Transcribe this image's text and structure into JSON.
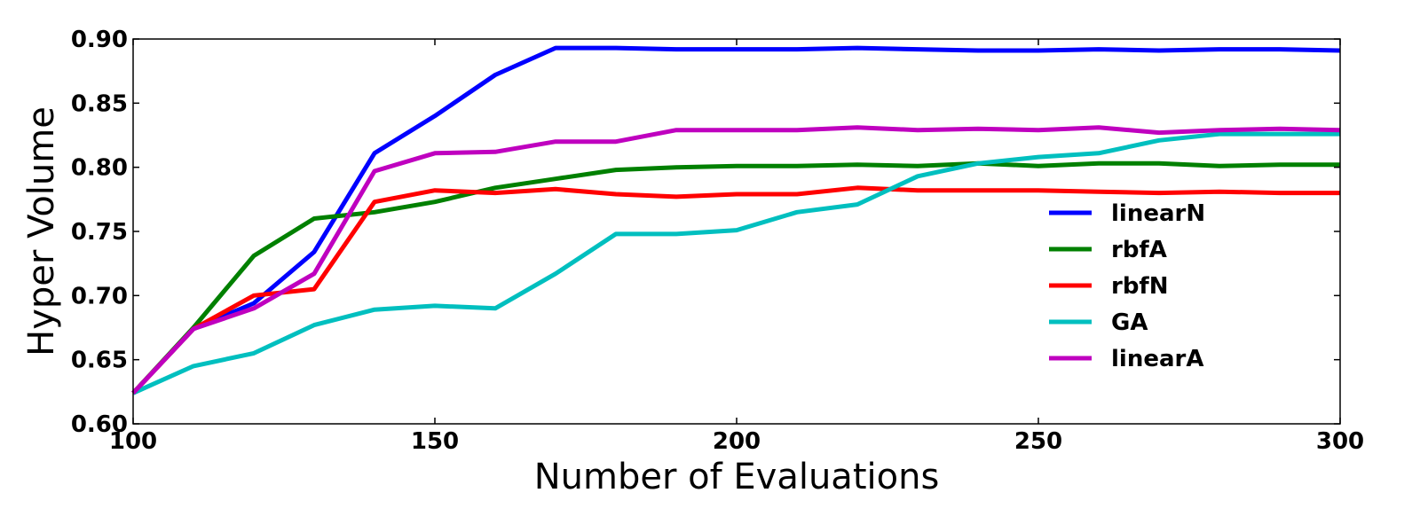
{
  "chart_data": {
    "type": "line",
    "title": "",
    "xlabel": "Number of Evaluations",
    "ylabel": "Hyper Volume",
    "xlim": [
      100,
      300
    ],
    "ylim": [
      0.6,
      0.9
    ],
    "xticks": [
      100,
      150,
      200,
      250,
      300
    ],
    "xtick_labels": [
      "100",
      "150",
      "200",
      "250",
      "300"
    ],
    "yticks": [
      0.6,
      0.65,
      0.7,
      0.75,
      0.8,
      0.85,
      0.9
    ],
    "ytick_labels": [
      "0.60",
      "0.65",
      "0.70",
      "0.75",
      "0.80",
      "0.85",
      "0.90"
    ],
    "grid": false,
    "legend_position": "center-right",
    "x": [
      100,
      110,
      120,
      130,
      140,
      150,
      160,
      170,
      180,
      190,
      200,
      210,
      220,
      230,
      240,
      250,
      260,
      270,
      280,
      290,
      300
    ],
    "series": [
      {
        "name": "linearN",
        "color": "#0000ff",
        "values": [
          0.624,
          0.674,
          0.694,
          0.734,
          0.811,
          0.84,
          0.872,
          0.893,
          0.893,
          0.892,
          0.892,
          0.892,
          0.893,
          0.892,
          0.891,
          0.891,
          0.892,
          0.891,
          0.892,
          0.892,
          0.891
        ]
      },
      {
        "name": "rbfA",
        "color": "#008000",
        "values": [
          0.624,
          0.675,
          0.731,
          0.76,
          0.765,
          0.773,
          0.784,
          0.791,
          0.798,
          0.8,
          0.801,
          0.801,
          0.802,
          0.801,
          0.803,
          0.801,
          0.803,
          0.803,
          0.801,
          0.802,
          0.802
        ]
      },
      {
        "name": "rbfN",
        "color": "#ff0000",
        "values": [
          0.624,
          0.674,
          0.7,
          0.705,
          0.773,
          0.782,
          0.78,
          0.783,
          0.779,
          0.777,
          0.779,
          0.779,
          0.784,
          0.782,
          0.782,
          0.782,
          0.781,
          0.78,
          0.781,
          0.78,
          0.78
        ]
      },
      {
        "name": "GA",
        "color": "#00bfbf",
        "values": [
          0.624,
          0.645,
          0.655,
          0.677,
          0.689,
          0.692,
          0.69,
          0.717,
          0.748,
          0.748,
          0.751,
          0.765,
          0.771,
          0.793,
          0.803,
          0.808,
          0.811,
          0.821,
          0.826,
          0.826,
          0.826
        ]
      },
      {
        "name": "linearA",
        "color": "#bf00bf",
        "values": [
          0.624,
          0.674,
          0.69,
          0.717,
          0.797,
          0.811,
          0.812,
          0.82,
          0.82,
          0.829,
          0.829,
          0.829,
          0.831,
          0.829,
          0.83,
          0.829,
          0.831,
          0.827,
          0.829,
          0.83,
          0.829
        ]
      }
    ]
  }
}
